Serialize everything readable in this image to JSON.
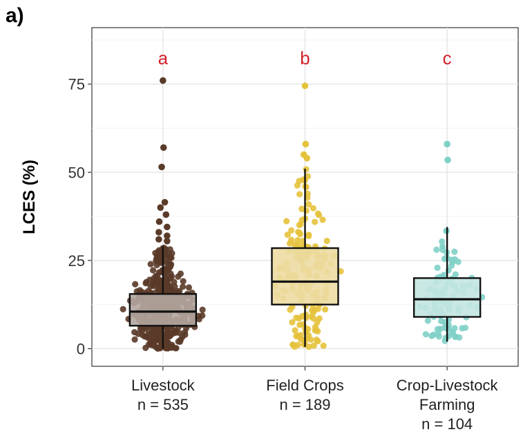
{
  "panel_label": "a)",
  "chart_data": {
    "type": "box",
    "ylabel": "LCES (%)",
    "ylim": [
      -5,
      91
    ],
    "yticks": [
      0,
      25,
      50,
      75
    ],
    "grid": true,
    "groups": [
      {
        "name": "Livestock",
        "n_label": "n = 535",
        "letter": "a",
        "color": "#5a3a28",
        "box_fill": "#b4a7a0",
        "min": 0,
        "q1": 6.5,
        "median": 10.5,
        "q3": 15.5,
        "max": 29,
        "outliers": [
          76,
          57,
          51.5,
          41.5,
          40,
          38,
          36,
          34.5,
          33,
          32,
          31,
          30.5
        ]
      },
      {
        "name": "Field Crops",
        "n_label": "n = 189",
        "letter": "b",
        "color": "#e5c23c",
        "box_fill": "#ecdba3",
        "min": 0.5,
        "q1": 12.5,
        "median": 19,
        "q3": 28.5,
        "max": 51,
        "outliers": [
          74.5,
          58,
          55,
          54
        ]
      },
      {
        "name": "Crop-Livestock",
        "name_line2": "Farming",
        "n_label": "n = 104",
        "letter": "c",
        "color": "#7fd0c8",
        "box_fill": "#c3e5e1",
        "min": 2,
        "q1": 9,
        "median": 14,
        "q3": 20,
        "max": 34.5,
        "outliers": [
          58,
          53.5
        ]
      }
    ],
    "letter_color": "#d2202a"
  }
}
